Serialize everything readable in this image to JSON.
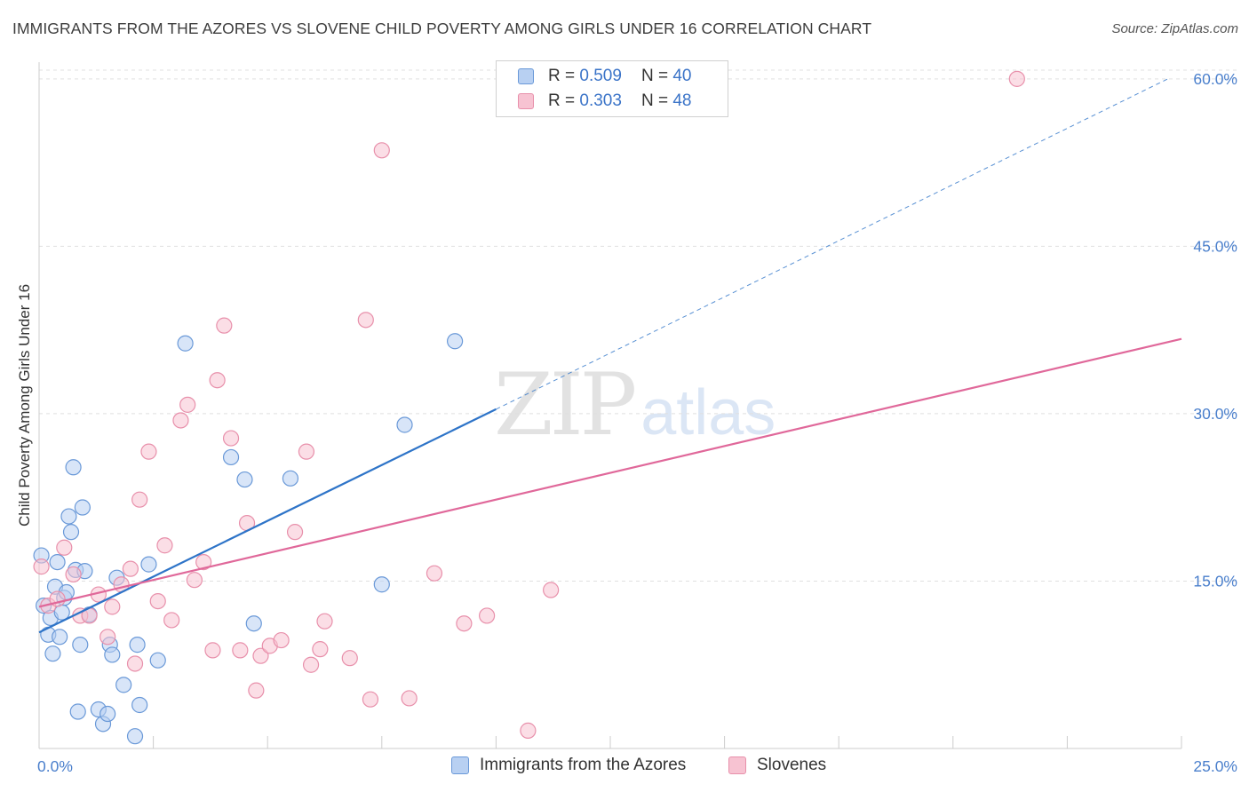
{
  "header": {
    "title": "IMMIGRANTS FROM THE AZORES VS SLOVENE CHILD POVERTY AMONG GIRLS UNDER 16 CORRELATION CHART",
    "source": "Source: ZipAtlas.com"
  },
  "watermark": {
    "zip": "ZIP",
    "atlas": "atlas"
  },
  "legend": {
    "r_label": "R = ",
    "n_label": "N = ",
    "rows": [
      {
        "r": "0.509",
        "n": "40"
      },
      {
        "r": "0.303",
        "n": "48"
      }
    ]
  },
  "bottom_legend": {
    "series_a": "Immigrants from the Azores",
    "series_b": "Slovenes"
  },
  "colors": {
    "series_a_fill": "#b8d0f2",
    "series_a_stroke": "#6a99d8",
    "series_a_line": "#2e74c8",
    "series_b_fill": "#f7c3d2",
    "series_b_stroke": "#e890ab",
    "series_b_line": "#e0689a",
    "tick_text": "#4a7fcc",
    "grid": "#e0e0e0"
  },
  "chart_data": {
    "type": "scatter",
    "title": "IMMIGRANTS FROM THE AZORES VS SLOVENE CHILD POVERTY AMONG GIRLS UNDER 16 CORRELATION CHART",
    "xlabel": "",
    "ylabel": "Child Poverty Among Girls Under 16",
    "xlim": [
      0,
      25
    ],
    "ylim": [
      0,
      61.5
    ],
    "x_tick_labels": [
      {
        "value": 0,
        "label": "0.0%"
      },
      {
        "value": 25,
        "label": "25.0%"
      }
    ],
    "x_minor_ticks": [
      2.5,
      5,
      7.5,
      10,
      12.5,
      15,
      17.5,
      20,
      22.5,
      25
    ],
    "y_ticks": [
      {
        "value": 15,
        "label": "15.0%"
      },
      {
        "value": 30,
        "label": "30.0%"
      },
      {
        "value": 45,
        "label": "45.0%"
      },
      {
        "value": 60,
        "label": "60.0%"
      }
    ],
    "grid": true,
    "series": [
      {
        "name": "Immigrants from the Azores",
        "R": 0.509,
        "N": 40,
        "points": [
          [
            0.05,
            17.3
          ],
          [
            0.1,
            12.8
          ],
          [
            0.2,
            10.2
          ],
          [
            0.25,
            11.7
          ],
          [
            0.3,
            8.5
          ],
          [
            0.35,
            14.5
          ],
          [
            0.4,
            16.7
          ],
          [
            0.45,
            10.0
          ],
          [
            0.5,
            12.2
          ],
          [
            0.55,
            13.5
          ],
          [
            0.6,
            14.0
          ],
          [
            0.65,
            20.8
          ],
          [
            0.7,
            19.4
          ],
          [
            0.75,
            25.2
          ],
          [
            0.8,
            16.0
          ],
          [
            0.85,
            3.3
          ],
          [
            0.9,
            9.3
          ],
          [
            0.95,
            21.6
          ],
          [
            1.0,
            15.9
          ],
          [
            1.1,
            12.0
          ],
          [
            1.3,
            3.5
          ],
          [
            1.4,
            2.2
          ],
          [
            1.5,
            3.1
          ],
          [
            1.55,
            9.3
          ],
          [
            1.6,
            8.4
          ],
          [
            1.7,
            15.3
          ],
          [
            1.85,
            5.7
          ],
          [
            2.1,
            1.1
          ],
          [
            2.15,
            9.3
          ],
          [
            2.2,
            3.9
          ],
          [
            2.4,
            16.5
          ],
          [
            2.6,
            7.9
          ],
          [
            3.2,
            36.3
          ],
          [
            4.2,
            26.1
          ],
          [
            4.5,
            24.1
          ],
          [
            4.7,
            11.2
          ],
          [
            5.5,
            24.2
          ],
          [
            7.5,
            14.7
          ],
          [
            8.0,
            29.0
          ],
          [
            9.1,
            36.5
          ]
        ],
        "trend": {
          "x": [
            0,
            10
          ],
          "y": [
            10.4,
            30.4
          ],
          "dashed_to": [
            24.7,
            60.0
          ]
        }
      },
      {
        "name": "Slovenes",
        "R": 0.303,
        "N": 48,
        "points": [
          [
            0.05,
            16.3
          ],
          [
            0.2,
            12.8
          ],
          [
            0.4,
            13.4
          ],
          [
            0.55,
            18.0
          ],
          [
            0.75,
            15.6
          ],
          [
            0.9,
            11.9
          ],
          [
            1.1,
            11.9
          ],
          [
            1.3,
            13.8
          ],
          [
            1.5,
            10.0
          ],
          [
            1.6,
            12.7
          ],
          [
            1.8,
            14.7
          ],
          [
            2.0,
            16.1
          ],
          [
            2.1,
            7.6
          ],
          [
            2.2,
            22.3
          ],
          [
            2.4,
            26.6
          ],
          [
            2.6,
            13.2
          ],
          [
            2.75,
            18.2
          ],
          [
            2.9,
            11.5
          ],
          [
            3.1,
            29.4
          ],
          [
            3.25,
            30.8
          ],
          [
            3.4,
            15.1
          ],
          [
            3.6,
            16.7
          ],
          [
            3.8,
            8.8
          ],
          [
            3.9,
            33.0
          ],
          [
            4.05,
            37.9
          ],
          [
            4.2,
            27.8
          ],
          [
            4.4,
            8.8
          ],
          [
            4.55,
            20.2
          ],
          [
            4.75,
            5.2
          ],
          [
            4.85,
            8.3
          ],
          [
            5.05,
            9.2
          ],
          [
            5.3,
            9.7
          ],
          [
            5.6,
            19.4
          ],
          [
            5.85,
            26.6
          ],
          [
            5.95,
            7.5
          ],
          [
            6.15,
            8.9
          ],
          [
            6.25,
            11.4
          ],
          [
            6.8,
            8.1
          ],
          [
            7.15,
            38.4
          ],
          [
            7.25,
            4.4
          ],
          [
            7.5,
            53.6
          ],
          [
            8.1,
            4.5
          ],
          [
            8.65,
            15.7
          ],
          [
            9.3,
            11.2
          ],
          [
            9.8,
            11.9
          ],
          [
            10.7,
            1.6
          ],
          [
            11.2,
            14.2
          ],
          [
            21.4,
            60.0
          ]
        ],
        "trend": {
          "x": [
            0,
            25
          ],
          "y": [
            12.7,
            36.7
          ]
        }
      }
    ]
  }
}
